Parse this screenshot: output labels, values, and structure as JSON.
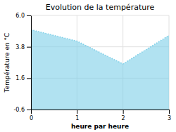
{
  "chart_data": {
    "type": "area",
    "title": "Evolution de la température",
    "xlabel": "heure par heure",
    "ylabel": "Température en °C",
    "x": [
      0,
      1,
      2,
      3
    ],
    "values": [
      5.0,
      4.2,
      2.6,
      4.6
    ],
    "xlim": [
      0,
      3
    ],
    "ylim": [
      -0.6,
      6.0
    ],
    "xticks": [
      0,
      1,
      2,
      3
    ],
    "yticks": [
      -0.6,
      1.6,
      3.8,
      {
        "value": 6.0,
        "label": "6.0"
      }
    ],
    "color": "#7dcfe8",
    "line_style": "dotted",
    "grid": true
  }
}
